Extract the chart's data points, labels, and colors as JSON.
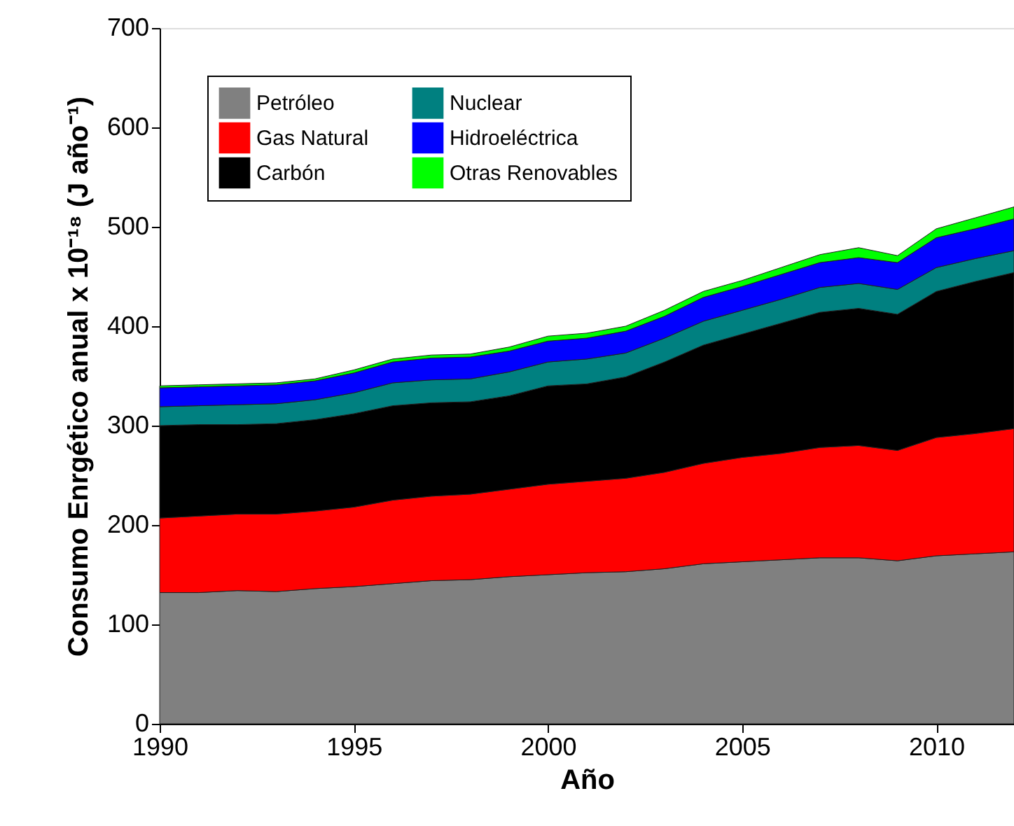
{
  "chart_data": {
    "type": "area",
    "stacked": true,
    "xlabel": "Año",
    "ylabel": "Consumo Enrgético anual x 10⁻¹⁸ (J año⁻¹)",
    "x": [
      1990,
      1991,
      1992,
      1993,
      1994,
      1995,
      1996,
      1997,
      1998,
      1999,
      2000,
      2001,
      2002,
      2003,
      2004,
      2005,
      2006,
      2007,
      2008,
      2009,
      2010,
      2011,
      2012
    ],
    "xlim": [
      1990,
      2012
    ],
    "xticks": [
      1990,
      1995,
      2000,
      2005,
      2010
    ],
    "ylim": [
      0,
      700
    ],
    "yticks": [
      0,
      100,
      200,
      300,
      400,
      500,
      600,
      700
    ],
    "grid": false,
    "legend": "top left",
    "series": [
      {
        "name": "Petróleo",
        "color": "#808080",
        "values": [
          132,
          132,
          134,
          133,
          136,
          138,
          141,
          144,
          145,
          148,
          150,
          152,
          153,
          156,
          161,
          163,
          165,
          167,
          167,
          164,
          169,
          171,
          173
        ]
      },
      {
        "name": "Gas Natural",
        "color": "#ff0000",
        "values": [
          75,
          77,
          77,
          78,
          78,
          80,
          84,
          85,
          86,
          88,
          91,
          92,
          94,
          97,
          101,
          105,
          107,
          111,
          113,
          111,
          119,
          121,
          124
        ]
      },
      {
        "name": "Carbón",
        "color": "#000000",
        "values": [
          93,
          92,
          90,
          91,
          92,
          94,
          95,
          94,
          93,
          94,
          99,
          98,
          102,
          111,
          119,
          124,
          131,
          136,
          138,
          137,
          147,
          153,
          157
        ]
      },
      {
        "name": "Nuclear",
        "color": "#008080",
        "values": [
          19,
          19,
          20,
          20,
          20,
          21,
          23,
          23,
          23,
          24,
          24,
          25,
          24,
          24,
          24,
          24,
          24,
          25,
          25,
          25,
          24,
          23,
          22
        ]
      },
      {
        "name": "Hidroeléctrica",
        "color": "#0000ff",
        "values": [
          19,
          19,
          19,
          19,
          19,
          20,
          21,
          22,
          22,
          21,
          21,
          21,
          22,
          22,
          24,
          24,
          25,
          25,
          26,
          27,
          30,
          30,
          32
        ]
      },
      {
        "name": "Otras Renovables",
        "color": "#00ff00",
        "values": [
          2,
          2,
          2,
          2,
          2,
          3,
          3,
          3,
          3,
          4,
          5,
          5,
          5,
          6,
          6,
          6,
          7,
          8,
          10,
          7,
          9,
          11,
          12
        ]
      }
    ]
  }
}
